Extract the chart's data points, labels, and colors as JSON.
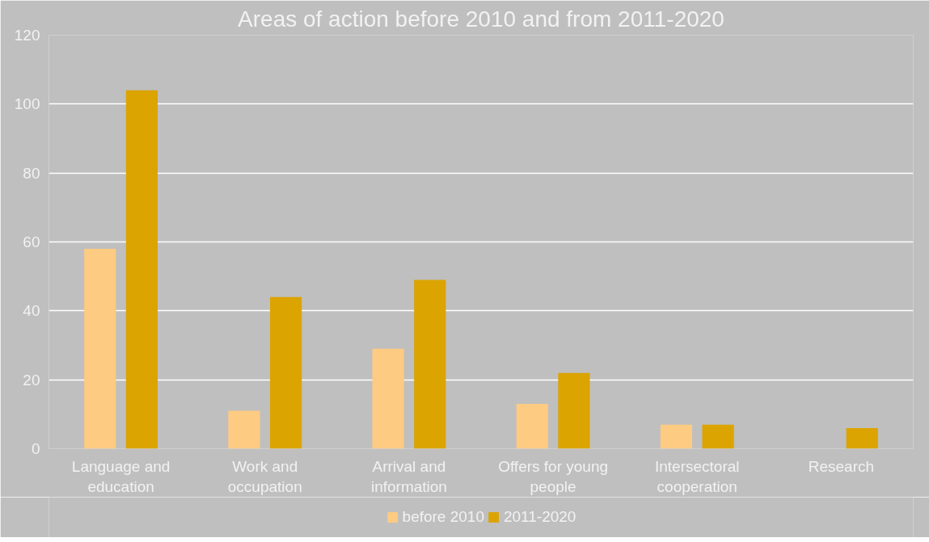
{
  "chart_data": {
    "type": "bar",
    "title": "Areas of action before 2010 and from 2011-2020",
    "categories": [
      "Language and education",
      "Work and occupation",
      "Arrival and information",
      "Offers for young people",
      "Intersectoral cooperation",
      "Research"
    ],
    "series": [
      {
        "name": "before 2010",
        "color": "#fdcb82",
        "values": [
          58,
          11,
          29,
          13,
          7,
          0
        ]
      },
      {
        "name": "2011-2020",
        "color": "#dba400",
        "values": [
          104,
          44,
          49,
          22,
          7,
          6
        ]
      }
    ],
    "ylim": [
      0,
      120
    ],
    "yticks": [
      0,
      20,
      40,
      60,
      80,
      100,
      120
    ],
    "grid": "y",
    "legend": "bottom"
  }
}
